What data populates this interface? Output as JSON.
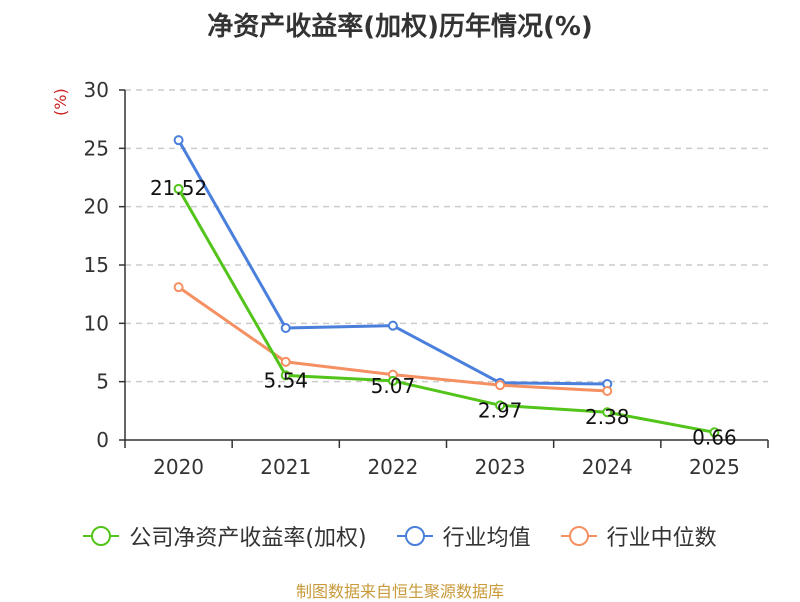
{
  "chart_data": {
    "type": "line",
    "title": "净资产收益率(加权)历年情况(%)",
    "ylabel": "(%)",
    "xlabel": "",
    "categories": [
      "2020",
      "2021",
      "2022",
      "2023",
      "2024",
      "2025"
    ],
    "ylim": [
      0,
      30
    ],
    "yticks": [
      0,
      5,
      10,
      15,
      20,
      25,
      30
    ],
    "grid": true,
    "legend_position": "bottom",
    "series": [
      {
        "name": "公司净资产收益率(加权)",
        "color": "#52c41a",
        "values": [
          21.52,
          5.54,
          5.07,
          2.97,
          2.38,
          0.66
        ],
        "labels": [
          "21.52",
          "5.54",
          "5.07",
          "2.97",
          "2.38",
          "0.66"
        ]
      },
      {
        "name": "行业均值",
        "color": "#4a7fdc",
        "values": [
          25.7,
          9.6,
          9.8,
          4.9,
          4.8,
          null
        ]
      },
      {
        "name": "行业中位数",
        "color": "#f59062",
        "values": [
          13.1,
          6.7,
          5.6,
          4.7,
          4.2,
          null
        ]
      }
    ]
  },
  "colors": {
    "title": "#333333",
    "unit": "#cc2222",
    "source": "#c89a3a",
    "grid": "#cccccc"
  },
  "source": "制图数据来自恒生聚源数据库"
}
